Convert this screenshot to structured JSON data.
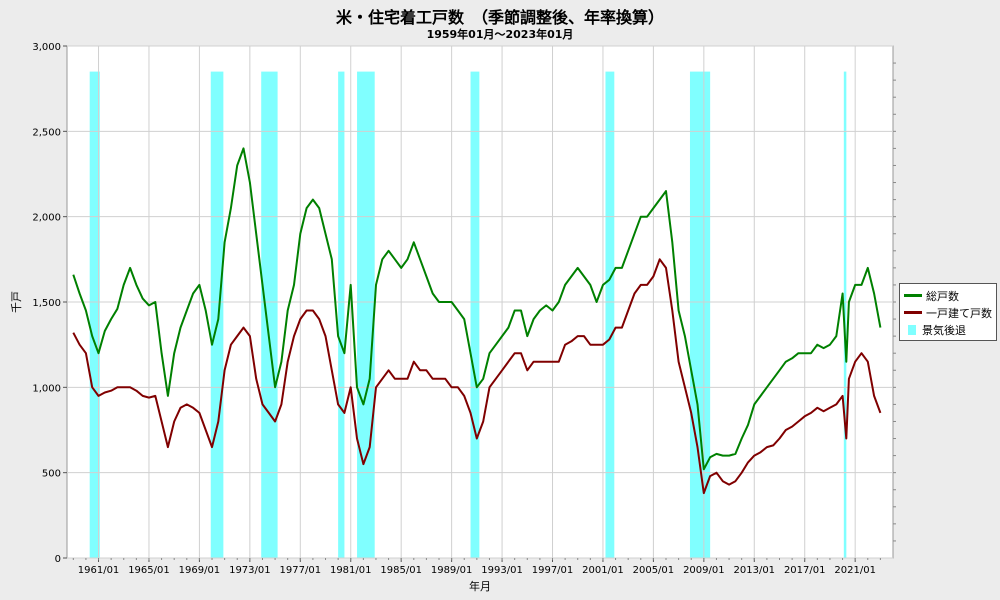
{
  "chart_data": {
    "type": "line",
    "title": "米・住宅着工戸数　（季節調整後、年率換算）",
    "subtitle": "1959年01月～2023年01月",
    "xlabel": "年月",
    "ylabel": "千戸",
    "ylim": [
      0,
      3000
    ],
    "xlim": [
      1958.5,
      2024.0
    ],
    "y_ticks": [
      0,
      500,
      1000,
      1500,
      2000,
      2500,
      3000
    ],
    "y_tick_labels": [
      "0",
      "500",
      "1,000",
      "1,500",
      "2,000",
      "2,500",
      "3,000"
    ],
    "x_ticks": [
      1961,
      1965,
      1969,
      1973,
      1977,
      1981,
      1985,
      1989,
      1993,
      1997,
      2001,
      2005,
      2009,
      2013,
      2017,
      2021
    ],
    "x_tick_labels": [
      "1961/01",
      "1965/01",
      "1969/01",
      "1973/01",
      "1977/01",
      "1981/01",
      "1985/01",
      "1989/01",
      "1993/01",
      "1997/01",
      "2001/01",
      "2005/01",
      "2009/01",
      "2013/01",
      "2017/01",
      "2021/01"
    ],
    "grid": true,
    "legend_position": "right",
    "recession_label": "景気後退",
    "recession_color": "#80ffff",
    "recessions": [
      [
        1960.3,
        1961.1
      ],
      [
        1969.9,
        1970.9
      ],
      [
        1973.9,
        1975.2
      ],
      [
        1980.0,
        1980.5
      ],
      [
        1981.5,
        1982.9
      ],
      [
        1990.5,
        1991.2
      ],
      [
        2001.2,
        2001.9
      ],
      [
        2007.9,
        2009.5
      ],
      [
        2020.1,
        2020.3
      ]
    ],
    "series": [
      {
        "name": "総戸数",
        "color": "#008000",
        "x": [
          1959.0,
          1959.5,
          1960.0,
          1960.5,
          1961.0,
          1961.5,
          1962.0,
          1962.5,
          1963.0,
          1963.5,
          1964.0,
          1964.5,
          1965.0,
          1965.5,
          1966.0,
          1966.5,
          1967.0,
          1967.5,
          1968.0,
          1968.5,
          1969.0,
          1969.5,
          1970.0,
          1970.5,
          1971.0,
          1971.5,
          1972.0,
          1972.5,
          1973.0,
          1973.5,
          1974.0,
          1974.5,
          1975.0,
          1975.5,
          1976.0,
          1976.5,
          1977.0,
          1977.5,
          1978.0,
          1978.5,
          1979.0,
          1979.5,
          1980.0,
          1980.5,
          1981.0,
          1981.5,
          1982.0,
          1982.5,
          1983.0,
          1983.5,
          1984.0,
          1984.5,
          1985.0,
          1985.5,
          1986.0,
          1986.5,
          1987.0,
          1987.5,
          1988.0,
          1988.5,
          1989.0,
          1989.5,
          1990.0,
          1990.5,
          1991.0,
          1991.5,
          1992.0,
          1992.5,
          1993.0,
          1993.5,
          1994.0,
          1994.5,
          1995.0,
          1995.5,
          1996.0,
          1996.5,
          1997.0,
          1997.5,
          1998.0,
          1998.5,
          1999.0,
          1999.5,
          2000.0,
          2000.5,
          2001.0,
          2001.5,
          2002.0,
          2002.5,
          2003.0,
          2003.5,
          2004.0,
          2004.5,
          2005.0,
          2005.5,
          2006.0,
          2006.5,
          2007.0,
          2007.5,
          2008.0,
          2008.5,
          2009.0,
          2009.5,
          2010.0,
          2010.5,
          2011.0,
          2011.5,
          2012.0,
          2012.5,
          2013.0,
          2013.5,
          2014.0,
          2014.5,
          2015.0,
          2015.5,
          2016.0,
          2016.5,
          2017.0,
          2017.5,
          2018.0,
          2018.5,
          2019.0,
          2019.5,
          2020.0,
          2020.3,
          2020.5,
          2021.0,
          2021.5,
          2022.0,
          2022.5,
          2023.0
        ],
        "values": [
          1660,
          1550,
          1450,
          1300,
          1200,
          1330,
          1400,
          1460,
          1600,
          1700,
          1600,
          1520,
          1480,
          1500,
          1200,
          950,
          1200,
          1350,
          1450,
          1550,
          1600,
          1450,
          1250,
          1400,
          1850,
          2050,
          2300,
          2400,
          2200,
          1900,
          1600,
          1300,
          1000,
          1150,
          1450,
          1600,
          1900,
          2050,
          2100,
          2050,
          1900,
          1750,
          1300,
          1200,
          1600,
          1000,
          900,
          1050,
          1600,
          1750,
          1800,
          1750,
          1700,
          1750,
          1850,
          1750,
          1650,
          1550,
          1500,
          1500,
          1500,
          1450,
          1400,
          1200,
          1000,
          1050,
          1200,
          1250,
          1300,
          1350,
          1450,
          1450,
          1300,
          1400,
          1450,
          1480,
          1450,
          1500,
          1600,
          1650,
          1700,
          1650,
          1600,
          1500,
          1600,
          1630,
          1700,
          1700,
          1800,
          1900,
          2000,
          2000,
          2050,
          2100,
          2150,
          1850,
          1450,
          1300,
          1100,
          900,
          520,
          590,
          610,
          600,
          600,
          610,
          700,
          780,
          900,
          950,
          1000,
          1050,
          1100,
          1150,
          1170,
          1200,
          1200,
          1200,
          1250,
          1230,
          1250,
          1300,
          1550,
          1150,
          1500,
          1600,
          1600,
          1700,
          1550,
          1350
        ]
      },
      {
        "name": "一戸建て戸数",
        "color": "#800000",
        "x": [
          1959.0,
          1959.5,
          1960.0,
          1960.5,
          1961.0,
          1961.5,
          1962.0,
          1962.5,
          1963.0,
          1963.5,
          1964.0,
          1964.5,
          1965.0,
          1965.5,
          1966.0,
          1966.5,
          1967.0,
          1967.5,
          1968.0,
          1968.5,
          1969.0,
          1969.5,
          1970.0,
          1970.5,
          1971.0,
          1971.5,
          1972.0,
          1972.5,
          1973.0,
          1973.5,
          1974.0,
          1974.5,
          1975.0,
          1975.5,
          1976.0,
          1976.5,
          1977.0,
          1977.5,
          1978.0,
          1978.5,
          1979.0,
          1979.5,
          1980.0,
          1980.5,
          1981.0,
          1981.5,
          1982.0,
          1982.5,
          1983.0,
          1983.5,
          1984.0,
          1984.5,
          1985.0,
          1985.5,
          1986.0,
          1986.5,
          1987.0,
          1987.5,
          1988.0,
          1988.5,
          1989.0,
          1989.5,
          1990.0,
          1990.5,
          1991.0,
          1991.5,
          1992.0,
          1992.5,
          1993.0,
          1993.5,
          1994.0,
          1994.5,
          1995.0,
          1995.5,
          1996.0,
          1996.5,
          1997.0,
          1997.5,
          1998.0,
          1998.5,
          1999.0,
          1999.5,
          2000.0,
          2000.5,
          2001.0,
          2001.5,
          2002.0,
          2002.5,
          2003.0,
          2003.5,
          2004.0,
          2004.5,
          2005.0,
          2005.5,
          2006.0,
          2006.5,
          2007.0,
          2007.5,
          2008.0,
          2008.5,
          2009.0,
          2009.5,
          2010.0,
          2010.5,
          2011.0,
          2011.5,
          2012.0,
          2012.5,
          2013.0,
          2013.5,
          2014.0,
          2014.5,
          2015.0,
          2015.5,
          2016.0,
          2016.5,
          2017.0,
          2017.5,
          2018.0,
          2018.5,
          2019.0,
          2019.5,
          2020.0,
          2020.3,
          2020.5,
          2021.0,
          2021.5,
          2022.0,
          2022.5,
          2023.0
        ],
        "values": [
          1320,
          1250,
          1200,
          1000,
          950,
          970,
          980,
          1000,
          1000,
          1000,
          980,
          950,
          940,
          950,
          800,
          650,
          800,
          880,
          900,
          880,
          850,
          750,
          650,
          800,
          1100,
          1250,
          1300,
          1350,
          1300,
          1050,
          900,
          850,
          800,
          900,
          1150,
          1300,
          1400,
          1450,
          1450,
          1400,
          1300,
          1100,
          900,
          850,
          1000,
          700,
          550,
          650,
          1000,
          1050,
          1100,
          1050,
          1050,
          1050,
          1150,
          1100,
          1100,
          1050,
          1050,
          1050,
          1000,
          1000,
          950,
          850,
          700,
          800,
          1000,
          1050,
          1100,
          1150,
          1200,
          1200,
          1100,
          1150,
          1150,
          1150,
          1150,
          1150,
          1250,
          1270,
          1300,
          1300,
          1250,
          1250,
          1250,
          1280,
          1350,
          1350,
          1450,
          1550,
          1600,
          1600,
          1650,
          1750,
          1700,
          1450,
          1150,
          1000,
          850,
          650,
          380,
          480,
          500,
          450,
          430,
          450,
          500,
          560,
          600,
          620,
          650,
          660,
          700,
          750,
          770,
          800,
          830,
          850,
          880,
          860,
          880,
          900,
          950,
          700,
          1050,
          1150,
          1200,
          1150,
          950,
          850
        ]
      }
    ]
  }
}
